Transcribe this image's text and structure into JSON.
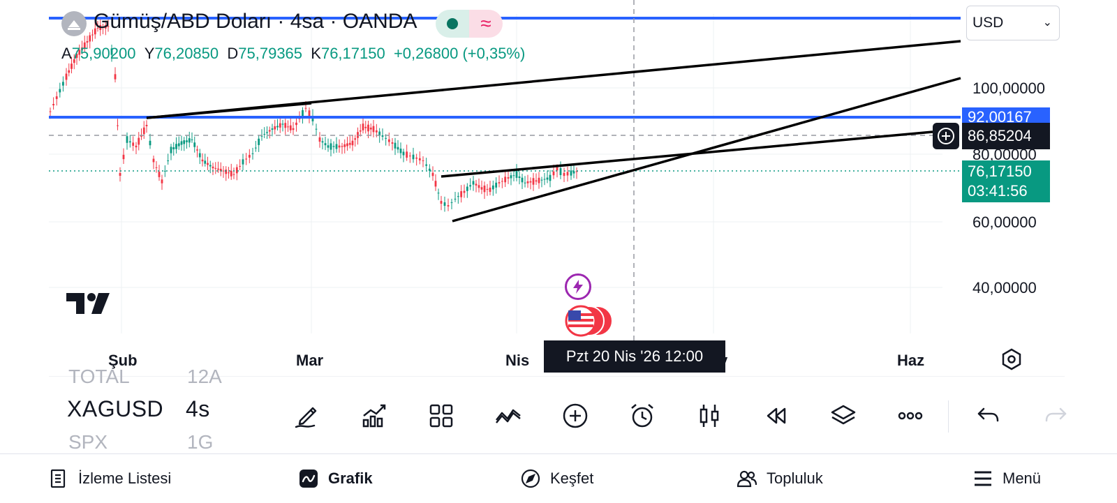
{
  "header": {
    "title": "Gümüş/ABD Doları · 4sa · OANDA",
    "wave_symbol": "≈",
    "ohlc": [
      {
        "key": "A",
        "value": "75,90200"
      },
      {
        "key": "Y",
        "value": "76,20850"
      },
      {
        "key": "D",
        "value": "75,79365"
      },
      {
        "key": "K",
        "value": "76,17150"
      },
      {
        "key": "",
        "value": "+0,26800 (+0,35%)"
      }
    ]
  },
  "currency_select": {
    "value": "USD"
  },
  "price_axis": {
    "labels": [
      "100,00000",
      "80,00000",
      "60,00000",
      "40,00000"
    ],
    "blue_line_tag": "92,00167",
    "crosshair_tag": "86,85204",
    "current_price": "76,17150",
    "countdown": "03:41:56"
  },
  "time_axis": {
    "labels": [
      "Şub",
      "Mar",
      "Nis",
      "y",
      "Haz"
    ],
    "crosshair_tooltip": "Pzt 20 Nis '26   12:00"
  },
  "symbol_picker": {
    "prev": {
      "symbol": "TOTAL",
      "interval": "12A"
    },
    "current": {
      "symbol": "XAGUSD",
      "interval": "4s"
    },
    "next": {
      "symbol": "SPX",
      "interval": "1G"
    }
  },
  "toolbar": [
    "pencil-icon",
    "chart-up-icon",
    "grid-icon",
    "zigzag-icon",
    "plus-circle-icon",
    "alarm-icon",
    "candles-icon",
    "rewind-icon",
    "layers-icon",
    "more-icon",
    "undo-icon",
    "redo-icon"
  ],
  "bottom_nav": [
    {
      "label": "İzleme Listesi",
      "icon": "watchlist-icon"
    },
    {
      "label": "Grafik",
      "icon": "chart-icon"
    },
    {
      "label": "Keşfet",
      "icon": "compass-icon"
    },
    {
      "label": "Topluluk",
      "icon": "community-icon"
    },
    {
      "label": "Menü",
      "icon": "menu-icon"
    }
  ],
  "colors": {
    "up": "#089981",
    "down": "#f23645",
    "blue_line": "#2962ff",
    "event_purple": "#9c27b0"
  }
}
